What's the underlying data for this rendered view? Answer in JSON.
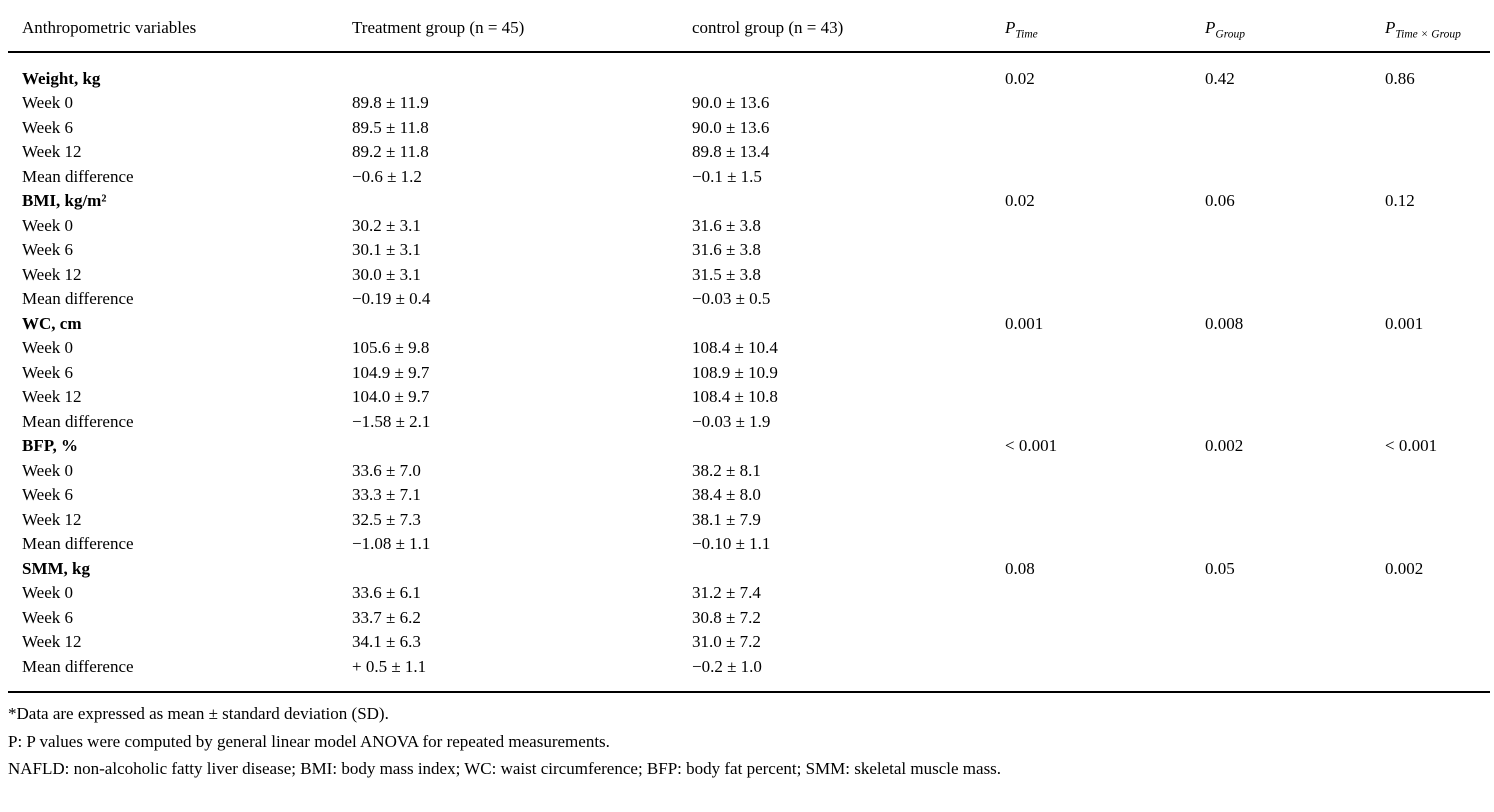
{
  "table": {
    "headers": {
      "variables": "Anthropometric variables",
      "treatment": "Treatment group (n = 45)",
      "control": "control group (n = 43)",
      "p_time": {
        "base": "P",
        "sub": "Time"
      },
      "p_group": {
        "base": "P",
        "sub": "Group"
      },
      "p_interaction": {
        "base": "P",
        "sub": "Time × Group"
      }
    },
    "rows": [
      {
        "label": "Weight, kg",
        "bold": true,
        "treatment": "",
        "control": "",
        "p_time": "0.02",
        "p_group": "0.42",
        "p_interaction": "0.86"
      },
      {
        "label": "Week 0",
        "bold": false,
        "treatment": "89.8 ± 11.9",
        "control": "90.0 ± 13.6",
        "p_time": "",
        "p_group": "",
        "p_interaction": ""
      },
      {
        "label": "Week 6",
        "bold": false,
        "treatment": "89.5 ± 11.8",
        "control": "90.0 ± 13.6",
        "p_time": "",
        "p_group": "",
        "p_interaction": ""
      },
      {
        "label": "Week 12",
        "bold": false,
        "treatment": "89.2 ± 11.8",
        "control": "89.8 ± 13.4",
        "p_time": "",
        "p_group": "",
        "p_interaction": ""
      },
      {
        "label": "Mean difference",
        "bold": false,
        "treatment": "−0.6 ± 1.2",
        "control": "−0.1 ± 1.5",
        "p_time": "",
        "p_group": "",
        "p_interaction": ""
      },
      {
        "label": "BMI, kg/m²",
        "bold": true,
        "treatment": "",
        "control": "",
        "p_time": "0.02",
        "p_group": "0.06",
        "p_interaction": "0.12"
      },
      {
        "label": "Week 0",
        "bold": false,
        "treatment": "30.2 ± 3.1",
        "control": "31.6 ± 3.8",
        "p_time": "",
        "p_group": "",
        "p_interaction": ""
      },
      {
        "label": "Week 6",
        "bold": false,
        "treatment": "30.1 ± 3.1",
        "control": "31.6 ± 3.8",
        "p_time": "",
        "p_group": "",
        "p_interaction": ""
      },
      {
        "label": "Week 12",
        "bold": false,
        "treatment": "30.0 ± 3.1",
        "control": "31.5 ± 3.8",
        "p_time": "",
        "p_group": "",
        "p_interaction": ""
      },
      {
        "label": "Mean difference",
        "bold": false,
        "treatment": "−0.19 ± 0.4",
        "control": "−0.03 ± 0.5",
        "p_time": "",
        "p_group": "",
        "p_interaction": ""
      },
      {
        "label": "WC, cm",
        "bold": true,
        "treatment": "",
        "control": "",
        "p_time": "0.001",
        "p_group": "0.008",
        "p_interaction": "0.001"
      },
      {
        "label": "Week 0",
        "bold": false,
        "treatment": "105.6 ± 9.8",
        "control": "108.4 ± 10.4",
        "p_time": "",
        "p_group": "",
        "p_interaction": ""
      },
      {
        "label": "Week 6",
        "bold": false,
        "treatment": "104.9 ± 9.7",
        "control": "108.9 ± 10.9",
        "p_time": "",
        "p_group": "",
        "p_interaction": ""
      },
      {
        "label": "Week 12",
        "bold": false,
        "treatment": "104.0 ± 9.7",
        "control": "108.4 ± 10.8",
        "p_time": "",
        "p_group": "",
        "p_interaction": ""
      },
      {
        "label": "Mean difference",
        "bold": false,
        "treatment": "−1.58 ± 2.1",
        "control": "−0.03 ± 1.9",
        "p_time": "",
        "p_group": "",
        "p_interaction": ""
      },
      {
        "label": "BFP, %",
        "bold": true,
        "treatment": "",
        "control": "",
        "p_time": "< 0.001",
        "p_group": "0.002",
        "p_interaction": "< 0.001"
      },
      {
        "label": "Week 0",
        "bold": false,
        "treatment": "33.6 ± 7.0",
        "control": "38.2 ± 8.1",
        "p_time": "",
        "p_group": "",
        "p_interaction": ""
      },
      {
        "label": "Week 6",
        "bold": false,
        "treatment": "33.3 ± 7.1",
        "control": "38.4 ± 8.0",
        "p_time": "",
        "p_group": "",
        "p_interaction": ""
      },
      {
        "label": "Week 12",
        "bold": false,
        "treatment": "32.5 ± 7.3",
        "control": "38.1 ± 7.9",
        "p_time": "",
        "p_group": "",
        "p_interaction": ""
      },
      {
        "label": "Mean difference",
        "bold": false,
        "treatment": "−1.08 ± 1.1",
        "control": "−0.10 ± 1.1",
        "p_time": "",
        "p_group": "",
        "p_interaction": ""
      },
      {
        "label": "SMM, kg",
        "bold": true,
        "treatment": "",
        "control": "",
        "p_time": "0.08",
        "p_group": "0.05",
        "p_interaction": "0.002"
      },
      {
        "label": "Week 0",
        "bold": false,
        "treatment": "33.6 ± 6.1",
        "control": "31.2 ± 7.4",
        "p_time": "",
        "p_group": "",
        "p_interaction": ""
      },
      {
        "label": "Week 6",
        "bold": false,
        "treatment": "33.7 ± 6.2",
        "control": "30.8 ± 7.2",
        "p_time": "",
        "p_group": "",
        "p_interaction": ""
      },
      {
        "label": "Week 12",
        "bold": false,
        "treatment": "34.1 ± 6.3",
        "control": "31.0 ± 7.2",
        "p_time": "",
        "p_group": "",
        "p_interaction": ""
      },
      {
        "label": "Mean difference",
        "bold": false,
        "treatment": "+ 0.5 ± 1.1",
        "control": "−0.2 ± 1.0",
        "p_time": "",
        "p_group": "",
        "p_interaction": ""
      }
    ]
  },
  "footnotes": [
    "*Data are expressed as mean ± standard deviation (SD).",
    "P: P values were computed by general linear model ANOVA for repeated measurements.",
    "NAFLD: non-alcoholic fatty liver disease; BMI: body mass index; WC: waist circumference; BFP: body fat percent; SMM: skeletal muscle mass."
  ]
}
